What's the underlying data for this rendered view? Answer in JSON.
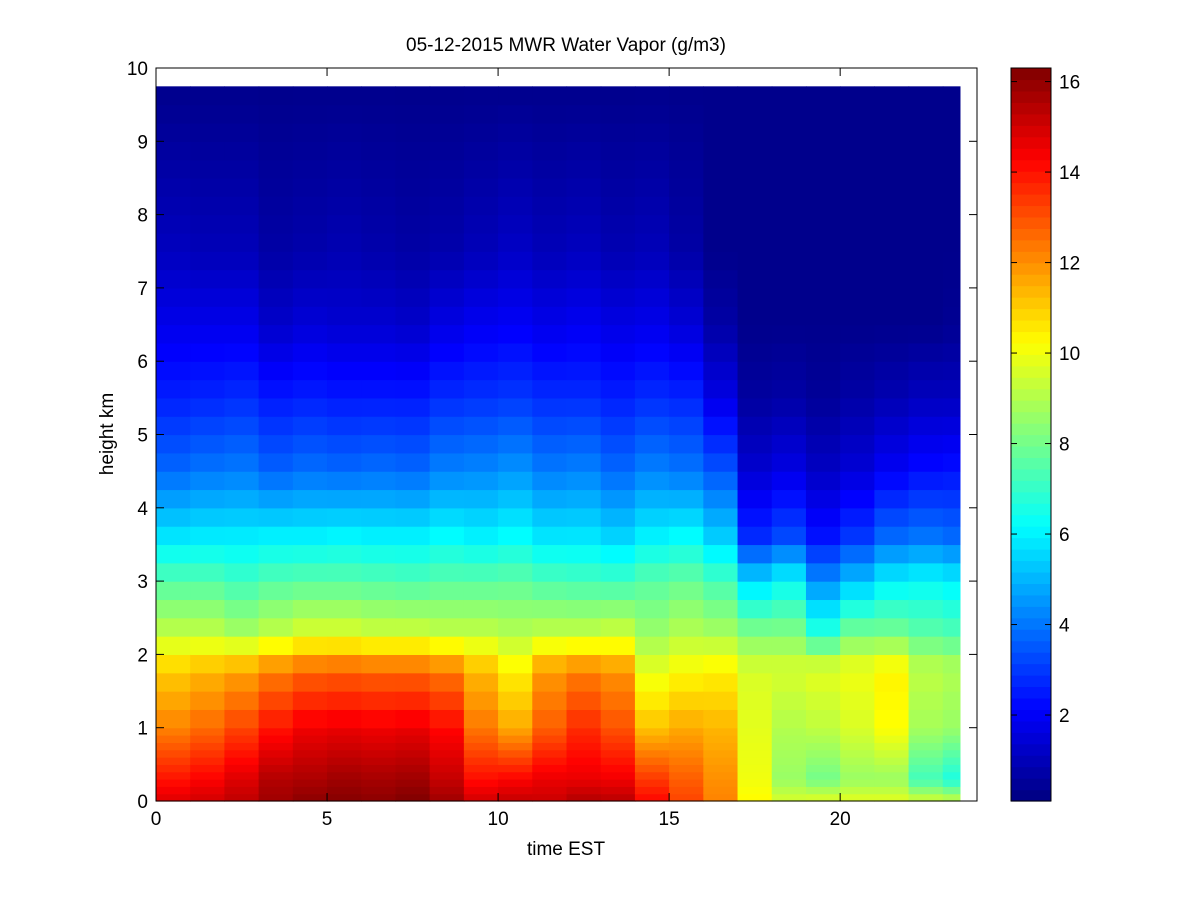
{
  "chart_data": {
    "type": "heatmap",
    "title": "05-12-2015 MWR Water Vapor (g/m3)",
    "xlabel": "time EST",
    "ylabel": "height km",
    "xlim": [
      0,
      24
    ],
    "ylim": [
      0,
      10
    ],
    "x_ticks": [
      "0",
      "5",
      "10",
      "15",
      "20"
    ],
    "y_ticks": [
      "0",
      "1",
      "2",
      "3",
      "4",
      "5",
      "6",
      "7",
      "8",
      "9",
      "10"
    ],
    "colorbar": {
      "colormap": "jet",
      "clim": [
        0.1,
        16.3
      ],
      "tick_labels": [
        "2",
        "4",
        "6",
        "8",
        "10",
        "12",
        "14",
        "16"
      ]
    },
    "x": [
      0.5,
      1.5,
      2.5,
      3.5,
      4.5,
      5.5,
      6.5,
      7.5,
      8.5,
      9.5,
      10.5,
      11.5,
      12.5,
      13.5,
      14.5,
      15.5,
      16.5,
      17.5,
      18.5,
      19.5,
      20.5,
      21.5,
      22.5,
      23.5
    ],
    "height_km": [
      0,
      0.1,
      0.2,
      0.3,
      0.4,
      0.5,
      0.6,
      0.7,
      0.8,
      0.9,
      1.0,
      1.25,
      1.5,
      1.75,
      2.0,
      2.25,
      2.5,
      2.75,
      3.0,
      3.25,
      3.5,
      3.75,
      4.0,
      4.25,
      4.5,
      4.75,
      5.0,
      5.25,
      5.5,
      5.75,
      6.0,
      6.25,
      6.5,
      6.75,
      7.0,
      7.25,
      7.5,
      7.75,
      8.0,
      8.25,
      8.5,
      8.75,
      9.0,
      9.25,
      9.5,
      9.75
    ],
    "profile_anchors": {
      "heights_km": [
        0,
        0.3,
        1.0,
        1.8,
        2.3,
        3.0,
        3.6,
        4.5,
        5.5,
        6.5,
        7.5,
        9.75
      ],
      "columns": [
        [
          14.8,
          14.0,
          12.2,
          11.0,
          9.2,
          7.5,
          5.8,
          3.8,
          2.6,
          1.8,
          1.1,
          0.3
        ],
        [
          15.0,
          14.3,
          12.6,
          11.3,
          9.2,
          7.5,
          5.9,
          4.0,
          2.7,
          1.8,
          1.0,
          0.3
        ],
        [
          15.3,
          14.8,
          13.2,
          11.6,
          8.8,
          7.2,
          5.9,
          4.1,
          2.8,
          1.8,
          1.0,
          0.3
        ],
        [
          15.8,
          15.5,
          14.0,
          12.2,
          9.2,
          7.5,
          6.0,
          3.7,
          2.5,
          1.3,
          0.7,
          0.3
        ],
        [
          16.1,
          15.6,
          14.5,
          12.6,
          9.6,
          7.6,
          6.0,
          3.9,
          2.6,
          1.5,
          0.8,
          0.3
        ],
        [
          16.2,
          15.8,
          14.6,
          12.7,
          9.6,
          7.6,
          6.1,
          3.8,
          2.5,
          1.4,
          0.9,
          0.3
        ],
        [
          16.1,
          15.7,
          14.5,
          12.6,
          9.4,
          7.5,
          6.0,
          3.9,
          2.5,
          1.4,
          0.8,
          0.3
        ],
        [
          16.3,
          15.8,
          14.6,
          12.6,
          9.4,
          7.4,
          6.0,
          3.8,
          2.5,
          1.3,
          0.7,
          0.3
        ],
        [
          15.8,
          15.2,
          14.2,
          12.3,
          9.2,
          7.6,
          6.2,
          4.2,
          2.8,
          1.7,
          0.8,
          0.3
        ],
        [
          15.0,
          14.1,
          12.4,
          11.3,
          9.2,
          7.6,
          6.0,
          4.3,
          2.9,
          1.9,
          1.0,
          0.3
        ],
        [
          15.2,
          14.3,
          11.6,
          10.4,
          9.0,
          7.7,
          6.2,
          4.5,
          3.0,
          2.0,
          1.2,
          0.3
        ],
        [
          15.1,
          14.6,
          12.8,
          11.8,
          9.2,
          7.4,
          5.8,
          4.1,
          2.8,
          1.8,
          1.0,
          0.3
        ],
        [
          15.5,
          14.6,
          13.6,
          12.2,
          9.2,
          7.3,
          5.8,
          4.2,
          2.8,
          1.9,
          1.1,
          0.3
        ],
        [
          15.4,
          14.5,
          13.0,
          11.9,
          9.4,
          7.2,
          5.5,
          3.8,
          2.6,
          1.7,
          0.9,
          0.3
        ],
        [
          14.2,
          13.4,
          11.2,
          9.8,
          8.6,
          7.6,
          6.0,
          4.2,
          2.8,
          1.8,
          1.0,
          0.3
        ],
        [
          13.2,
          12.8,
          11.6,
          10.2,
          9.0,
          7.8,
          6.2,
          4.0,
          2.7,
          1.5,
          0.7,
          0.3
        ],
        [
          12.2,
          12.0,
          11.4,
          10.4,
          8.8,
          7.3,
          5.4,
          3.5,
          1.7,
          0.7,
          0.3,
          0.3
        ],
        [
          10.3,
          10.0,
          9.8,
          9.6,
          8.2,
          5.6,
          2.8,
          1.4,
          0.6,
          0.3,
          0.3,
          0.3
        ],
        [
          9.6,
          8.6,
          9.0,
          9.6,
          8.2,
          6.2,
          3.3,
          1.7,
          0.7,
          0.3,
          0.3,
          0.3
        ],
        [
          9.8,
          8.0,
          9.2,
          9.8,
          6.8,
          4.4,
          2.4,
          1.2,
          0.5,
          0.3,
          0.3,
          0.3
        ],
        [
          9.8,
          8.6,
          9.6,
          10.0,
          8.0,
          5.2,
          3.0,
          1.5,
          0.7,
          0.3,
          0.3,
          0.3
        ],
        [
          9.8,
          8.6,
          10.2,
          10.4,
          8.0,
          6.0,
          3.8,
          2.0,
          0.9,
          0.3,
          0.3,
          0.3
        ],
        [
          9.6,
          7.2,
          8.8,
          9.2,
          7.6,
          6.2,
          4.0,
          2.3,
          1.1,
          0.3,
          0.3,
          0.3
        ],
        [
          9.4,
          6.6,
          8.6,
          9.0,
          7.4,
          6.0,
          3.8,
          2.4,
          1.1,
          0.4,
          0.3,
          0.3
        ]
      ]
    }
  }
}
